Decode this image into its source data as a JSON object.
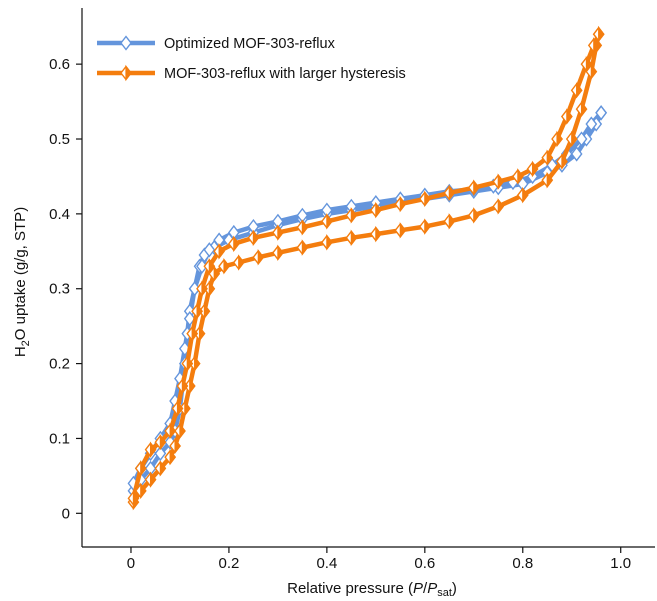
{
  "chart_data": {
    "type": "line",
    "xlabel": {
      "main": "Relative pressure (",
      "italic_p": "P",
      "slash": "/",
      "italic_psat": "P",
      "sub": "sat",
      "close": ")"
    },
    "ylabel": {
      "main": "H",
      "sub": "2",
      "rest": "O uptake (g/g, STP)"
    },
    "xlim": [
      -0.1,
      1.07
    ],
    "ylim": [
      -0.045,
      0.675
    ],
    "xticks": [
      0,
      0.2,
      0.4,
      0.6,
      0.8,
      1.0
    ],
    "xtick_labels": [
      "0",
      "0.2",
      "0.4",
      "0.6",
      "0.8",
      "1.0"
    ],
    "yticks": [
      0,
      0.1,
      0.2,
      0.3,
      0.4,
      0.5,
      0.6
    ],
    "ytick_labels": [
      "0",
      "0.1",
      "0.2",
      "0.3",
      "0.4",
      "0.5",
      "0.6"
    ],
    "grid": false,
    "legend_position": "top-left",
    "series": [
      {
        "name": "Optimized MOF-303-reflux",
        "color": "#6495dc",
        "marker": "open-diamond",
        "adsorption": [
          [
            0.005,
            0.03
          ],
          [
            0.02,
            0.045
          ],
          [
            0.04,
            0.06
          ],
          [
            0.06,
            0.08
          ],
          [
            0.08,
            0.095
          ],
          [
            0.09,
            0.11
          ],
          [
            0.1,
            0.14
          ],
          [
            0.105,
            0.17
          ],
          [
            0.11,
            0.2
          ],
          [
            0.115,
            0.24
          ],
          [
            0.12,
            0.27
          ],
          [
            0.13,
            0.3
          ],
          [
            0.14,
            0.33
          ],
          [
            0.15,
            0.345
          ],
          [
            0.17,
            0.355
          ],
          [
            0.2,
            0.365
          ],
          [
            0.25,
            0.375
          ],
          [
            0.3,
            0.385
          ],
          [
            0.35,
            0.393
          ],
          [
            0.4,
            0.4
          ],
          [
            0.45,
            0.405
          ],
          [
            0.5,
            0.41
          ],
          [
            0.55,
            0.415
          ],
          [
            0.6,
            0.42
          ],
          [
            0.65,
            0.425
          ],
          [
            0.7,
            0.43
          ],
          [
            0.75,
            0.435
          ],
          [
            0.8,
            0.44
          ],
          [
            0.85,
            0.455
          ],
          [
            0.88,
            0.465
          ],
          [
            0.91,
            0.48
          ],
          [
            0.93,
            0.5
          ],
          [
            0.95,
            0.52
          ],
          [
            0.96,
            0.535
          ]
        ],
        "desorption": [
          [
            0.96,
            0.535
          ],
          [
            0.94,
            0.52
          ],
          [
            0.92,
            0.5
          ],
          [
            0.89,
            0.48
          ],
          [
            0.86,
            0.465
          ],
          [
            0.82,
            0.45
          ],
          [
            0.78,
            0.442
          ],
          [
            0.74,
            0.437
          ],
          [
            0.7,
            0.433
          ],
          [
            0.65,
            0.43
          ],
          [
            0.6,
            0.425
          ],
          [
            0.55,
            0.42
          ],
          [
            0.5,
            0.415
          ],
          [
            0.45,
            0.41
          ],
          [
            0.4,
            0.405
          ],
          [
            0.35,
            0.398
          ],
          [
            0.3,
            0.39
          ],
          [
            0.25,
            0.383
          ],
          [
            0.21,
            0.375
          ],
          [
            0.18,
            0.365
          ],
          [
            0.16,
            0.352
          ],
          [
            0.145,
            0.33
          ],
          [
            0.13,
            0.3
          ],
          [
            0.12,
            0.26
          ],
          [
            0.11,
            0.22
          ],
          [
            0.1,
            0.18
          ],
          [
            0.09,
            0.15
          ],
          [
            0.08,
            0.12
          ],
          [
            0.06,
            0.1
          ],
          [
            0.04,
            0.08
          ],
          [
            0.02,
            0.06
          ],
          [
            0.005,
            0.04
          ]
        ]
      },
      {
        "name": "MOF-303-reflux with larger hysteresis",
        "color": "#f47d0e",
        "marker": "half-filled-diamond",
        "adsorption": [
          [
            0.005,
            0.015
          ],
          [
            0.02,
            0.03
          ],
          [
            0.04,
            0.045
          ],
          [
            0.06,
            0.06
          ],
          [
            0.08,
            0.075
          ],
          [
            0.09,
            0.09
          ],
          [
            0.1,
            0.11
          ],
          [
            0.11,
            0.14
          ],
          [
            0.12,
            0.17
          ],
          [
            0.13,
            0.2
          ],
          [
            0.14,
            0.24
          ],
          [
            0.15,
            0.27
          ],
          [
            0.16,
            0.3
          ],
          [
            0.17,
            0.32
          ],
          [
            0.19,
            0.33
          ],
          [
            0.22,
            0.335
          ],
          [
            0.26,
            0.342
          ],
          [
            0.3,
            0.348
          ],
          [
            0.35,
            0.355
          ],
          [
            0.4,
            0.362
          ],
          [
            0.45,
            0.368
          ],
          [
            0.5,
            0.373
          ],
          [
            0.55,
            0.378
          ],
          [
            0.6,
            0.383
          ],
          [
            0.65,
            0.39
          ],
          [
            0.7,
            0.398
          ],
          [
            0.75,
            0.41
          ],
          [
            0.8,
            0.425
          ],
          [
            0.85,
            0.445
          ],
          [
            0.88,
            0.47
          ],
          [
            0.9,
            0.5
          ],
          [
            0.92,
            0.54
          ],
          [
            0.94,
            0.59
          ],
          [
            0.95,
            0.625
          ],
          [
            0.955,
            0.64
          ]
        ],
        "desorption": [
          [
            0.955,
            0.64
          ],
          [
            0.945,
            0.625
          ],
          [
            0.93,
            0.6
          ],
          [
            0.91,
            0.565
          ],
          [
            0.89,
            0.53
          ],
          [
            0.87,
            0.5
          ],
          [
            0.85,
            0.475
          ],
          [
            0.82,
            0.46
          ],
          [
            0.79,
            0.45
          ],
          [
            0.75,
            0.443
          ],
          [
            0.7,
            0.435
          ],
          [
            0.65,
            0.428
          ],
          [
            0.6,
            0.42
          ],
          [
            0.55,
            0.413
          ],
          [
            0.5,
            0.405
          ],
          [
            0.45,
            0.398
          ],
          [
            0.4,
            0.39
          ],
          [
            0.35,
            0.382
          ],
          [
            0.3,
            0.375
          ],
          [
            0.25,
            0.368
          ],
          [
            0.21,
            0.36
          ],
          [
            0.18,
            0.35
          ],
          [
            0.16,
            0.33
          ],
          [
            0.145,
            0.3
          ],
          [
            0.135,
            0.27
          ],
          [
            0.125,
            0.24
          ],
          [
            0.115,
            0.2
          ],
          [
            0.105,
            0.17
          ],
          [
            0.095,
            0.14
          ],
          [
            0.08,
            0.11
          ],
          [
            0.06,
            0.095
          ],
          [
            0.04,
            0.085
          ],
          [
            0.02,
            0.06
          ],
          [
            0.005,
            0.02
          ]
        ]
      }
    ]
  }
}
